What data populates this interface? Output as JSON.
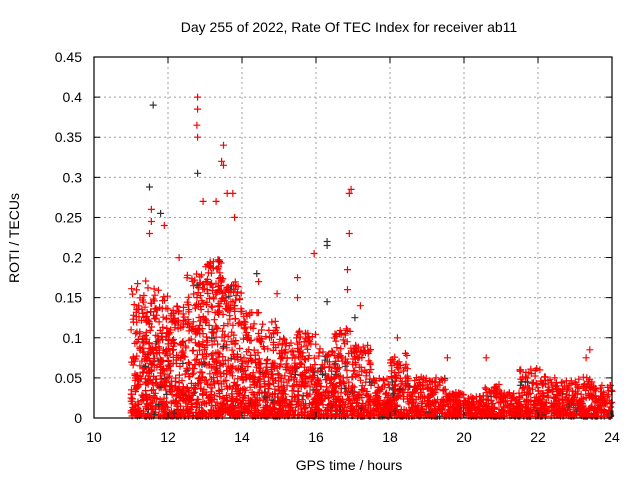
{
  "chart_data": {
    "type": "scatter",
    "title": "Day 255 of 2022, Rate Of TEC Index for receiver ab11",
    "xlabel": "GPS time / hours",
    "ylabel": "ROTI / TECUs",
    "xlim": [
      10,
      24
    ],
    "ylim": [
      0,
      0.45
    ],
    "xticks": [
      "10",
      "12",
      "14",
      "16",
      "18",
      "20",
      "22",
      "24"
    ],
    "yticks": [
      "0",
      "0.05",
      "0.1",
      "0.15",
      "0.2",
      "0.25",
      "0.3",
      "0.35",
      "0.4",
      "0.45"
    ],
    "grid": true,
    "marker": "plus",
    "colors": {
      "primary": "#ff0000",
      "secondary": "#333333"
    },
    "dense_band_upper_envelope": {
      "bin_start_hours": [
        11,
        11.5,
        12,
        12.5,
        13,
        13.5,
        14,
        14.5,
        15,
        15.5,
        16,
        16.5,
        17,
        17.5,
        18,
        18.5,
        19,
        19.5,
        20,
        20.5,
        21,
        21.5,
        22,
        22.5,
        23,
        23.5
      ],
      "bin_width_hours": 0.5,
      "max_roti": [
        0.17,
        0.16,
        0.14,
        0.18,
        0.2,
        0.17,
        0.13,
        0.12,
        0.1,
        0.11,
        0.09,
        0.11,
        0.09,
        0.05,
        0.08,
        0.05,
        0.05,
        0.03,
        0.025,
        0.04,
        0.03,
        0.06,
        0.05,
        0.045,
        0.05,
        0.04
      ]
    },
    "notable_points": [
      [
        11.6,
        0.39,
        "secondary"
      ],
      [
        12.8,
        0.4,
        "primary"
      ],
      [
        12.8,
        0.385,
        "primary"
      ],
      [
        12.78,
        0.365,
        "primary"
      ],
      [
        12.8,
        0.35,
        "primary"
      ],
      [
        11.5,
        0.288,
        "secondary"
      ],
      [
        12.8,
        0.305,
        "secondary"
      ],
      [
        13.5,
        0.34,
        "primary"
      ],
      [
        13.45,
        0.32,
        "primary"
      ],
      [
        13.5,
        0.315,
        "primary"
      ],
      [
        13.6,
        0.28,
        "primary"
      ],
      [
        13.75,
        0.28,
        "primary"
      ],
      [
        13.8,
        0.25,
        "primary"
      ],
      [
        16.95,
        0.285,
        "primary"
      ],
      [
        16.9,
        0.28,
        "primary"
      ],
      [
        16.9,
        0.23,
        "primary"
      ],
      [
        16.85,
        0.185,
        "primary"
      ],
      [
        16.85,
        0.16,
        "primary"
      ],
      [
        11.55,
        0.26,
        "primary"
      ],
      [
        11.55,
        0.245,
        "primary"
      ],
      [
        11.5,
        0.23,
        "primary"
      ],
      [
        11.8,
        0.255,
        "secondary"
      ],
      [
        11.9,
        0.24,
        "primary"
      ],
      [
        12.3,
        0.2,
        "primary"
      ],
      [
        12.95,
        0.27,
        "primary"
      ],
      [
        13.3,
        0.27,
        "primary"
      ],
      [
        16.3,
        0.22,
        "secondary"
      ],
      [
        16.3,
        0.215,
        "secondary"
      ],
      [
        16.3,
        0.145,
        "secondary"
      ],
      [
        15.5,
        0.175,
        "primary"
      ],
      [
        15.95,
        0.205,
        "primary"
      ],
      [
        15.5,
        0.15,
        "primary"
      ],
      [
        14.4,
        0.18,
        "secondary"
      ],
      [
        14.45,
        0.17,
        "primary"
      ],
      [
        14.95,
        0.155,
        "primary"
      ],
      [
        17.2,
        0.14,
        "primary"
      ],
      [
        17.05,
        0.125,
        "secondary"
      ],
      [
        20.6,
        0.075,
        "primary"
      ],
      [
        23.4,
        0.085,
        "primary"
      ],
      [
        23.3,
        0.075,
        "primary"
      ],
      [
        22.05,
        0.06,
        "primary"
      ],
      [
        18.2,
        0.1,
        "primary"
      ],
      [
        19.55,
        0.075,
        "primary"
      ]
    ]
  }
}
